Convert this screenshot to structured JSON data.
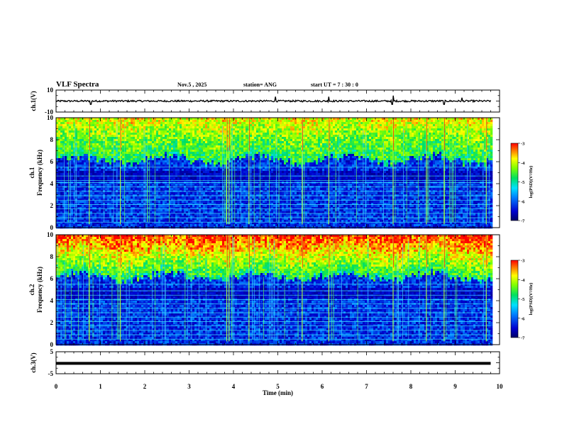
{
  "chart_data": {
    "type": "heatmap",
    "title": "VLF Spectra",
    "header": {
      "date": "Nov.5 , 2025",
      "station": "station= ANG",
      "start": "start UT = 7 : 30 : 0"
    },
    "xaxis": {
      "label": "Time (min)",
      "range": [
        0,
        10
      ],
      "ticks": [
        "0",
        "1",
        "2",
        "3",
        "4",
        "5",
        "6",
        "7",
        "8",
        "9",
        "10"
      ],
      "data_end": 9.8
    },
    "panels": [
      {
        "id": "ch1-waveform",
        "type": "line",
        "ylabel": "ch.1(V)",
        "ylim": [
          -10,
          10
        ],
        "yticks": [
          "10",
          "-10"
        ],
        "baseline": 0,
        "spikes": [
          {
            "t": 0.78,
            "v": -3
          },
          {
            "t": 4.95,
            "v": 4
          },
          {
            "t": 6.15,
            "v": 4
          },
          {
            "t": 7.6,
            "v": 5
          },
          {
            "t": 7.58,
            "v": -3
          },
          {
            "t": 8.75,
            "v": -3
          },
          {
            "t": 9.15,
            "v": 3
          }
        ]
      },
      {
        "id": "ch1-spectrogram",
        "type": "heatmap",
        "ylabel": "ch.1 Frequency (kHz)",
        "ylim": [
          0,
          10
        ],
        "yticks": [
          "0",
          "2",
          "4",
          "6",
          "8",
          "10"
        ],
        "colorbar": {
          "label": "log(PSD)(V²/Hz)",
          "range": [
            -7,
            -3
          ],
          "ticks": [
            "-3",
            "-4",
            "-5",
            "-6",
            "-7"
          ]
        },
        "sferic_times": [
          0.75,
          1.45,
          3.85,
          3.9,
          4.35,
          5.55,
          6.15,
          7.6,
          8.35,
          8.75,
          9.7
        ],
        "hum_lines_khz": [
          0.5,
          0.9,
          1.3,
          1.7,
          2.1,
          2.5,
          2.9,
          3.3,
          3.7,
          4.1,
          4.3,
          4.7,
          5.5
        ]
      },
      {
        "id": "ch2-spectrogram",
        "type": "heatmap",
        "ylabel": "ch.2 Frequency (kHz)",
        "ylim": [
          0,
          10
        ],
        "yticks": [
          "0",
          "2",
          "4",
          "6",
          "8",
          "10"
        ],
        "colorbar": {
          "label": "log(PSD)(V²/Hz)",
          "range": [
            -7,
            -3
          ],
          "ticks": [
            "-3",
            "-4",
            "-5",
            "-6",
            "-7"
          ]
        },
        "sferic_times": [
          0.75,
          1.45,
          3.85,
          3.9,
          4.35,
          5.55,
          6.15,
          7.6,
          8.35,
          8.75,
          9.7
        ],
        "hum_lines_khz": [
          0.5,
          0.9,
          1.3,
          1.7,
          2.1,
          2.5,
          2.9,
          3.3,
          3.7,
          4.1,
          4.5,
          4.9,
          5.5
        ]
      },
      {
        "id": "ch3-waveform",
        "type": "line",
        "ylabel": "ch.3(V)",
        "ylim": [
          -5,
          5
        ],
        "yticks": [
          "5",
          "-5"
        ],
        "baseline": -0.3
      }
    ]
  }
}
